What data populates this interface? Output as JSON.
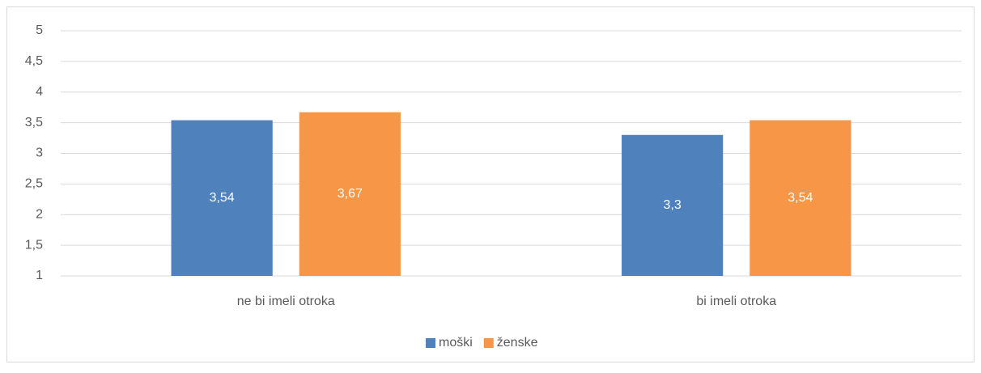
{
  "chart_data": {
    "type": "bar",
    "categories": [
      "ne bi imeli otroka",
      "bi imeli otroka"
    ],
    "series": [
      {
        "name": "moški",
        "color": "#4f81bd",
        "values": [
          3.54,
          3.3
        ],
        "value_labels": [
          "3,54",
          "3,3"
        ]
      },
      {
        "name": "ženske",
        "color": "#f79646",
        "values": [
          3.67,
          3.54
        ],
        "value_labels": [
          "3,67",
          "3,54"
        ]
      }
    ],
    "ylim": [
      1,
      5
    ],
    "yticks": [
      1,
      {
        "value": 1.5,
        "label": "1,5"
      },
      2,
      {
        "value": 2.5,
        "label": "2,5"
      },
      3,
      {
        "value": 3.5,
        "label": "3,5"
      },
      4,
      {
        "value": 4.5,
        "label": "4,5"
      },
      5
    ],
    "grid": true,
    "legend": "bottom"
  }
}
